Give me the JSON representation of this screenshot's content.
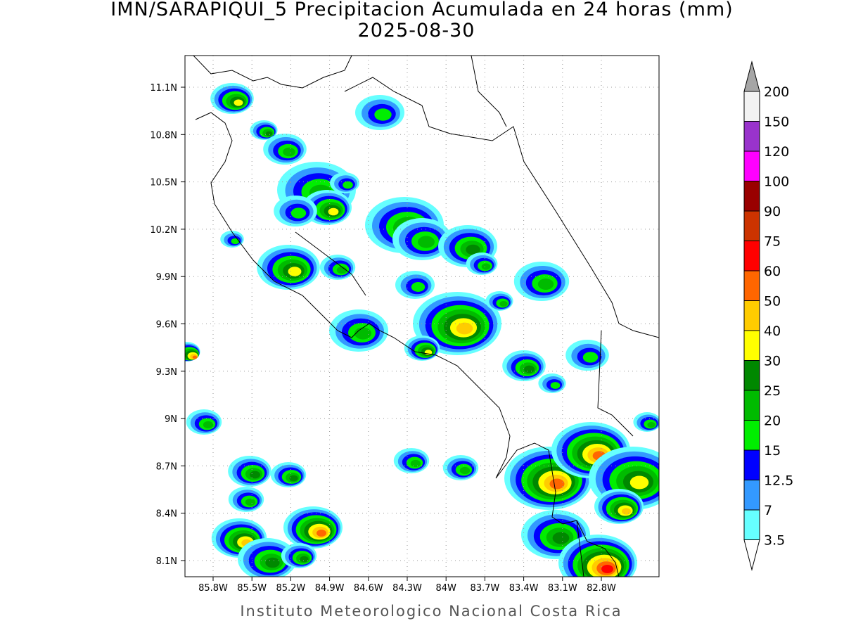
{
  "title": "IMN/SARAPIQUI_5 Precipitacion Acumulada en 24 horas (mm)",
  "subtitle": "2025-08-30",
  "map": {
    "lon_labels": [
      "85.8W",
      "85.5W",
      "85.2W",
      "84.9W",
      "84.6W",
      "84.3W",
      "84W",
      "83.7W",
      "83.4W",
      "83.1W",
      "82.8W"
    ],
    "lat_labels": [
      "11.1N",
      "10.8N",
      "10.5N",
      "10.2N",
      "9.9N",
      "9.6N",
      "9.3N",
      "9N",
      "8.7N",
      "8.4N",
      "8.1N"
    ]
  },
  "colorbar": {
    "levels": [
      3.5,
      7,
      12.5,
      15,
      20,
      25,
      30,
      40,
      50,
      60,
      75,
      90,
      100,
      120,
      150,
      200
    ],
    "colors": [
      "#66ffff",
      "#3399ff",
      "#0000ff",
      "#00ee00",
      "#00bb00",
      "#008800",
      "#ffff00",
      "#ffcc00",
      "#ff6600",
      "#ff0000",
      "#cc3300",
      "#990000",
      "#ff00ff",
      "#9933cc",
      "#f2f2f2"
    ],
    "over_color": "#a6a6a6"
  },
  "footer": "Instituto Meteorologico Nacional Costa Rica"
}
